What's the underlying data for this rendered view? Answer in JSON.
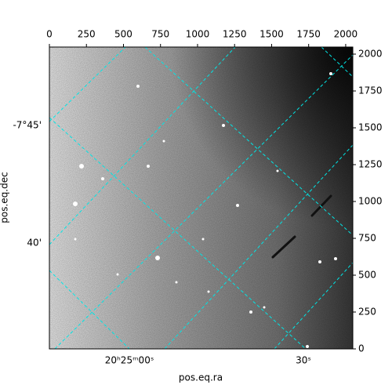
{
  "chart_data": {
    "type": "image",
    "xlabel": "pos.eq.ra",
    "ylabel": "pos.eq.dec",
    "xlim": [
      0,
      2048
    ],
    "ylim": [
      0,
      2048
    ],
    "xticks": [
      0,
      250,
      500,
      750,
      1000,
      1250,
      1500,
      1750,
      2000
    ],
    "yticks": [
      0,
      250,
      500,
      750,
      1000,
      1250,
      1500,
      1750,
      2000
    ],
    "ra_labels": [
      "20ʰ25ᵐ00ˢ",
      "30ˢ"
    ],
    "dec_labels": [
      "-7°45'",
      "40'"
    ],
    "grid_color": "#00e5e5"
  }
}
